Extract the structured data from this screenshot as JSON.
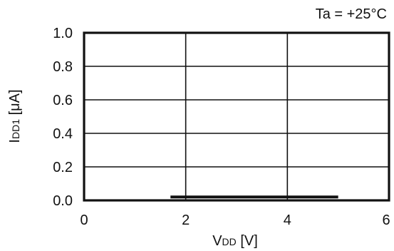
{
  "chart_data": {
    "type": "line",
    "title": "",
    "annotation": "Ta = +25°C",
    "xlabel": {
      "main": "V",
      "subscript": "DD",
      "unit": " [V]"
    },
    "ylabel": {
      "main": "I",
      "subscript": "DD1",
      "unit": " [μA]"
    },
    "xlim": [
      0,
      6
    ],
    "ylim": [
      0,
      1.0
    ],
    "x_ticks": [
      0,
      2,
      4,
      6
    ],
    "x_tick_labels": [
      "0",
      "2",
      "4",
      "6"
    ],
    "y_ticks": [
      0.0,
      0.2,
      0.4,
      0.6,
      0.8,
      1.0
    ],
    "y_tick_labels": [
      "0.0",
      "0.2",
      "0.4",
      "0.6",
      "0.8",
      "1.0"
    ],
    "grid": true,
    "series": [
      {
        "x": [
          1.7,
          5.0
        ],
        "y": [
          0.02,
          0.02
        ]
      }
    ],
    "colors": {
      "line": "#111111",
      "grid": "#111111",
      "frame": "#111111"
    }
  }
}
